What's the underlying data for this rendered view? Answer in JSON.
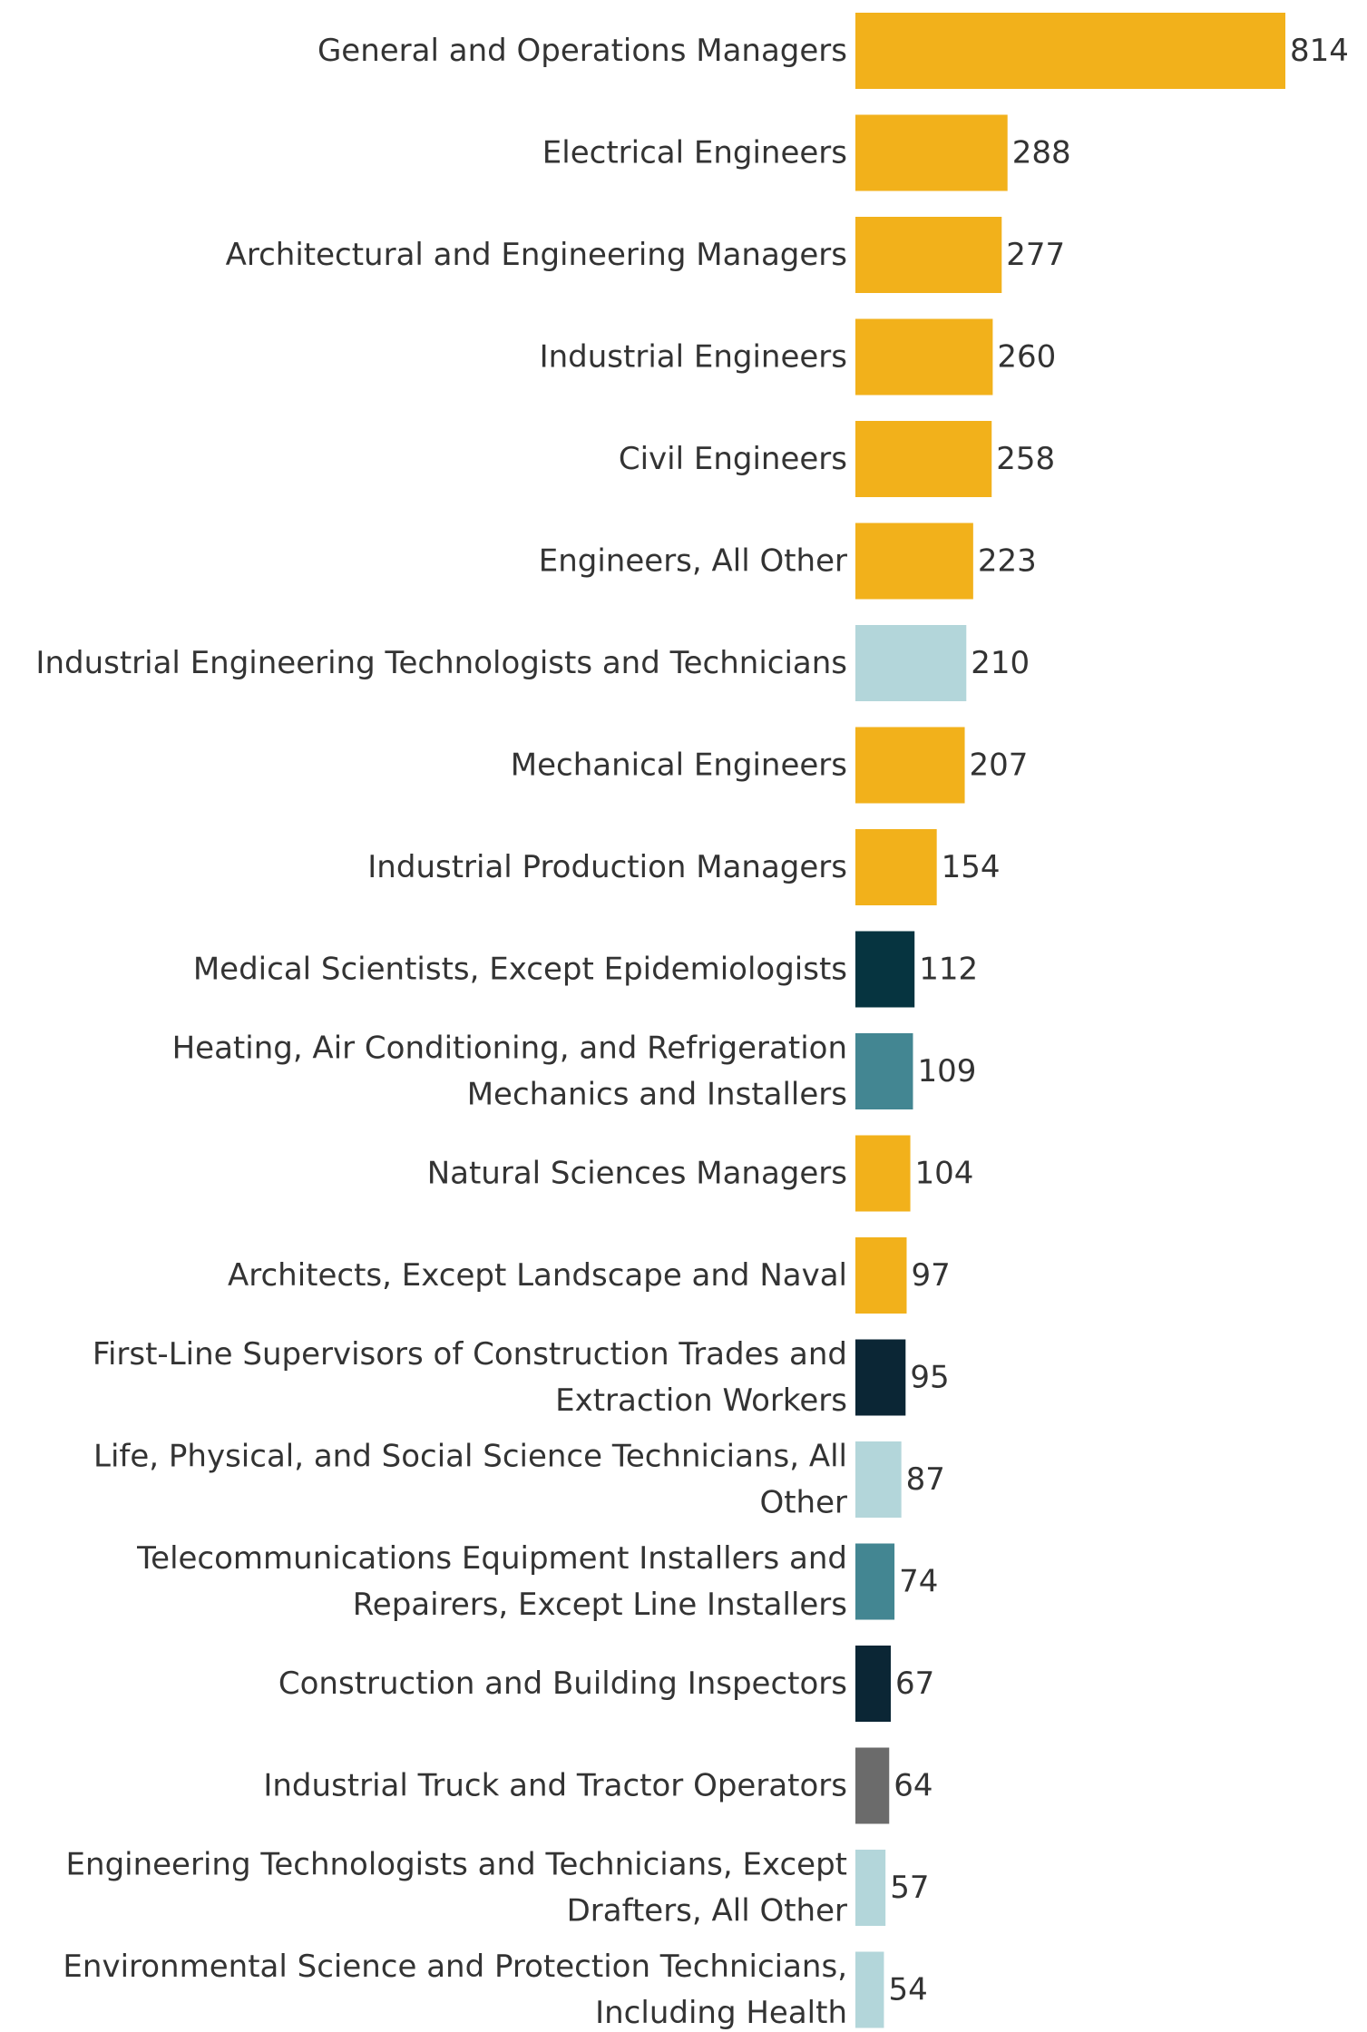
{
  "colors": {
    "gold": "#F2B11B",
    "light_teal": "#B3D6DA",
    "dark_navy": "#063440",
    "darkest_navy": "#0B2635",
    "medium_teal": "#438692",
    "gray": "#6B6B6B"
  },
  "chart_data": {
    "type": "bar",
    "orientation": "horizontal",
    "title": "",
    "xlabel": "",
    "ylabel": "",
    "xlim": [
      0,
      814
    ],
    "grid": false,
    "legend": "none",
    "data_labels": true,
    "categories": [
      [
        "General and Operations Managers"
      ],
      [
        "Electrical Engineers"
      ],
      [
        "Architectural and Engineering Managers"
      ],
      [
        "Industrial Engineers"
      ],
      [
        "Civil Engineers"
      ],
      [
        "Engineers, All Other"
      ],
      [
        "Industrial Engineering Technologists and Technicians"
      ],
      [
        "Mechanical Engineers"
      ],
      [
        "Industrial Production Managers"
      ],
      [
        "Medical Scientists, Except Epidemiologists"
      ],
      [
        "Heating, Air Conditioning, and Refrigeration",
        "Mechanics and Installers"
      ],
      [
        "Natural Sciences Managers"
      ],
      [
        "Architects, Except Landscape and Naval"
      ],
      [
        "First-Line Supervisors of Construction Trades and",
        "Extraction Workers"
      ],
      [
        "Life, Physical, and Social Science Technicians, All",
        "Other"
      ],
      [
        "Telecommunications Equipment Installers and",
        "Repairers, Except Line Installers"
      ],
      [
        "Construction and Building Inspectors"
      ],
      [
        "Industrial Truck and Tractor Operators"
      ],
      [
        "Engineering Technologists and Technicians, Except",
        "Drafters, All Other"
      ],
      [
        "Environmental Science and Protection Technicians,",
        "Including Health"
      ]
    ],
    "values": [
      814,
      288,
      277,
      260,
      258,
      223,
      210,
      207,
      154,
      112,
      109,
      104,
      97,
      95,
      87,
      74,
      67,
      64,
      57,
      54
    ],
    "bar_colors": [
      "#F2B11B",
      "#F2B11B",
      "#F2B11B",
      "#F2B11B",
      "#F2B11B",
      "#F2B11B",
      "#B3D6DA",
      "#F2B11B",
      "#F2B11B",
      "#063440",
      "#438692",
      "#F2B11B",
      "#F2B11B",
      "#0B2635",
      "#B3D6DA",
      "#438692",
      "#0B2635",
      "#6B6B6B",
      "#B3D6DA",
      "#B3D6DA"
    ]
  }
}
